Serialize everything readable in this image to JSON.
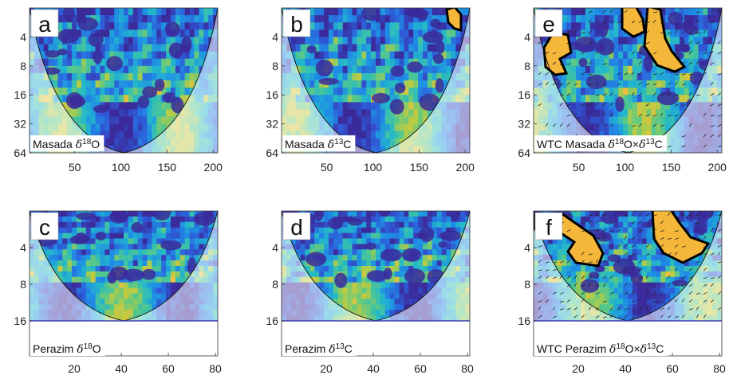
{
  "figure": {
    "colormap": [
      "#3b2a9a",
      "#2f59d6",
      "#1f8de6",
      "#23b9c9",
      "#55c88a",
      "#b8cc45",
      "#f0be3a",
      "#f9e24f"
    ],
    "outside_coi_opacity": 0.45
  },
  "chart_data": [
    {
      "type": "heatmap",
      "panel": "a",
      "label": "Masada δ18O",
      "label_parts": [
        "Masada ",
        "δ",
        "18",
        "O"
      ],
      "x_ticks": [
        50,
        100,
        150,
        200
      ],
      "y_ticks": [
        4,
        8,
        16,
        32,
        64
      ],
      "xlim": [
        1,
        205
      ],
      "ylim": [
        2,
        64
      ],
      "yscale": "log2",
      "y_reversed": true,
      "coi": true,
      "arrows": false,
      "significance_contours": 0
    },
    {
      "type": "heatmap",
      "panel": "b",
      "label": "Masada δ13C",
      "label_parts": [
        "Masada ",
        "δ",
        "13",
        "C"
      ],
      "x_ticks": [
        50,
        100,
        150,
        200
      ],
      "y_ticks": [
        4,
        8,
        16,
        32,
        64
      ],
      "xlim": [
        1,
        205
      ],
      "ylim": [
        2,
        64
      ],
      "yscale": "log2",
      "y_reversed": true,
      "coi": true,
      "arrows": false,
      "significance_contours": 1
    },
    {
      "type": "heatmap",
      "panel": "e",
      "label": "WTC Masada δ18O×δ13C",
      "label_parts": [
        "WTC Masada ",
        "δ",
        "18",
        "O×",
        "δ",
        "13",
        "C"
      ],
      "x_ticks": [
        50,
        100,
        150,
        200
      ],
      "y_ticks": [
        4,
        8,
        16,
        32,
        64
      ],
      "xlim": [
        1,
        205
      ],
      "ylim": [
        2,
        64
      ],
      "yscale": "log2",
      "y_reversed": true,
      "coi": true,
      "arrows": true,
      "significance_contours": 3
    },
    {
      "type": "heatmap",
      "panel": "c",
      "label": "Perazim δ18O",
      "label_parts": [
        "Perazim ",
        "δ",
        "18",
        "O"
      ],
      "x_ticks": [
        20,
        40,
        60,
        80
      ],
      "y_ticks": [
        4,
        8,
        16
      ],
      "xlim": [
        1,
        81
      ],
      "ylim": [
        2,
        64
      ],
      "yscale": "log2",
      "y_reversed": true,
      "coi": true,
      "arrows": false,
      "significance_contours": 0
    },
    {
      "type": "heatmap",
      "panel": "d",
      "label": "Perazim δ13C",
      "label_parts": [
        "Perazim ",
        "δ",
        "13",
        "C"
      ],
      "x_ticks": [
        20,
        40,
        60,
        80
      ],
      "y_ticks": [
        4,
        8,
        16
      ],
      "xlim": [
        1,
        81
      ],
      "ylim": [
        2,
        64
      ],
      "yscale": "log2",
      "y_reversed": true,
      "coi": true,
      "arrows": false,
      "significance_contours": 0
    },
    {
      "type": "heatmap",
      "panel": "f",
      "label": "WTC Perazim δ18O×δ13C",
      "label_parts": [
        "WTC Perazim ",
        "δ",
        "18",
        "O×",
        "δ",
        "13",
        "C"
      ],
      "x_ticks": [
        20,
        40,
        60,
        80
      ],
      "y_ticks": [
        4,
        8,
        16
      ],
      "xlim": [
        1,
        81
      ],
      "ylim": [
        2,
        64
      ],
      "yscale": "log2",
      "y_reversed": true,
      "coi": true,
      "arrows": true,
      "significance_contours": 2
    }
  ]
}
